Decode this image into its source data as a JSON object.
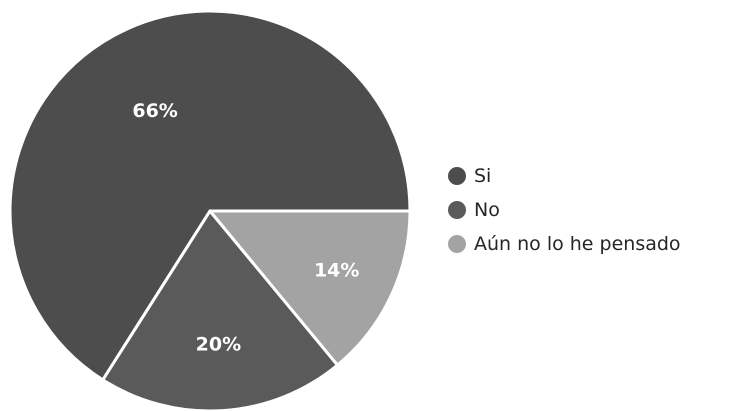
{
  "chart_data": {
    "type": "pie",
    "title": "",
    "series": [
      {
        "name": "Si",
        "value": 66,
        "label": "66%",
        "color": "#4d4d4d"
      },
      {
        "name": "No",
        "value": 20,
        "label": "20%",
        "color": "#5a5a5a"
      },
      {
        "name": "Aún no lo he pensado",
        "value": 14,
        "label": "14%",
        "color": "#a3a3a3"
      }
    ],
    "start_angle_degrees": 0,
    "direction": "counterclockwise",
    "legend_position": "right",
    "slice_border_color": "#ffffff"
  }
}
